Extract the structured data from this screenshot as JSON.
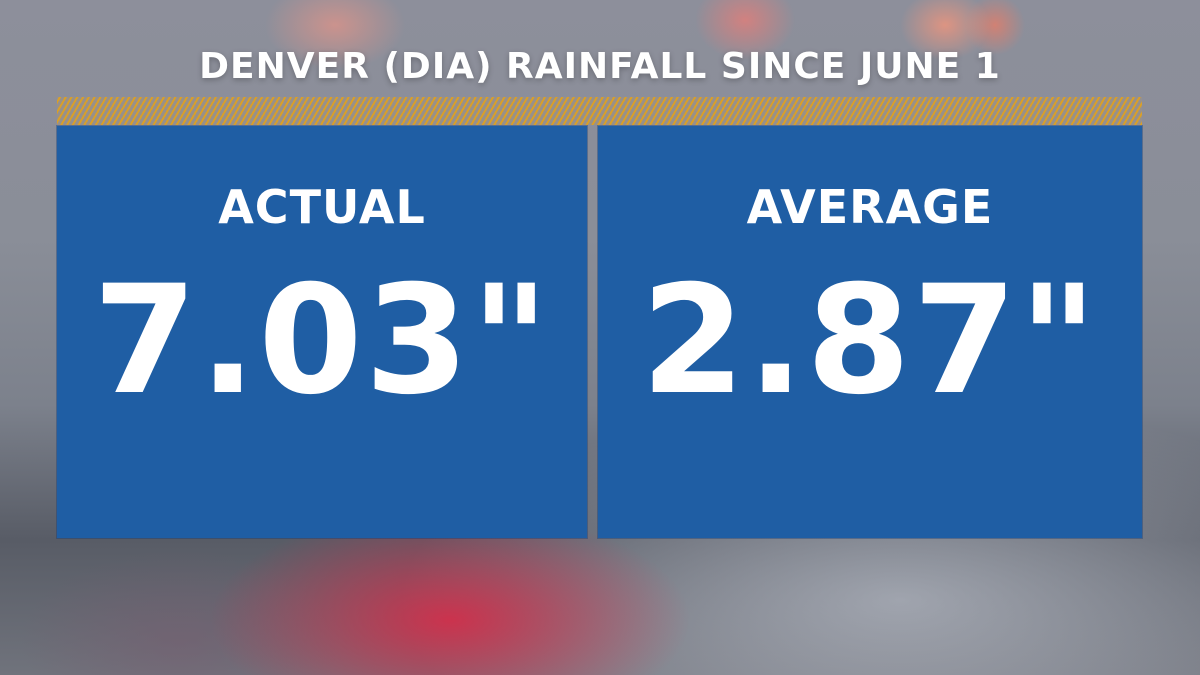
{
  "title": "DENVER (DIA) RAINFALL SINCE JUNE 1",
  "panels": {
    "actual": {
      "label": "ACTUAL",
      "value": "7.03\""
    },
    "average": {
      "label": "AVERAGE",
      "value": "2.87\""
    }
  },
  "colors": {
    "panel": "#1f5ea4",
    "accent_stripe": "#e0a11d",
    "text": "#ffffff"
  }
}
